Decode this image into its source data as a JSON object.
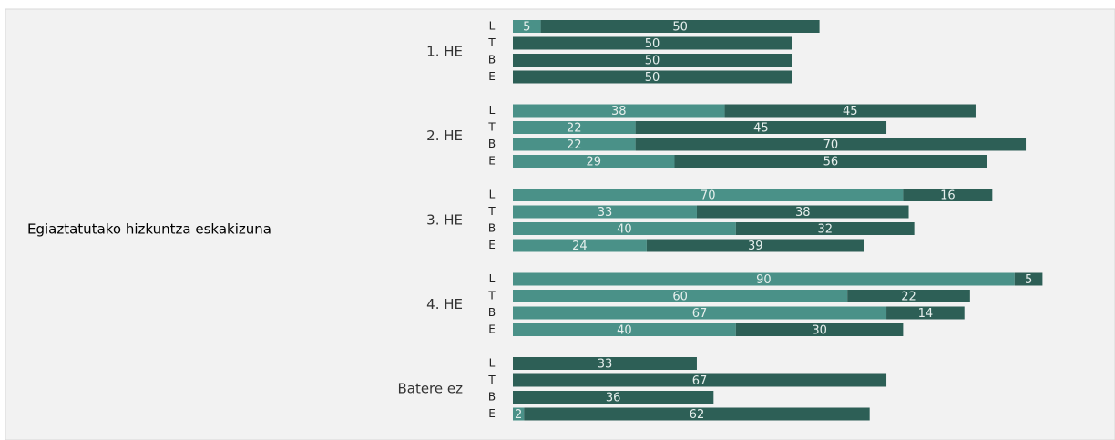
{
  "chart_data": {
    "type": "stacked-bar-horizontal",
    "y_label": "Egiaztatutako hizkuntza eskakizuna",
    "groups": [
      {
        "label": "1. HE",
        "categories": [
          "L",
          "T",
          "B",
          "E"
        ]
      },
      {
        "label": "2. HE",
        "categories": [
          "L",
          "T",
          "B",
          "E"
        ]
      },
      {
        "label": "3. HE",
        "categories": [
          "L",
          "T",
          "B",
          "E"
        ]
      },
      {
        "label": "4. HE",
        "categories": [
          "L",
          "T",
          "B",
          "E"
        ]
      },
      {
        "label": "Batere ez",
        "categories": [
          "L",
          "T",
          "B",
          "E"
        ]
      }
    ],
    "series": [
      {
        "color": "#4a9188",
        "values": [
          [
            5,
            null,
            null,
            null
          ],
          [
            38,
            22,
            22,
            29
          ],
          [
            70,
            33,
            40,
            24
          ],
          [
            90,
            60,
            67,
            40
          ],
          [
            null,
            null,
            null,
            2
          ]
        ]
      },
      {
        "color": "#2d5f56",
        "values": [
          [
            50,
            50,
            50,
            50
          ],
          [
            45,
            45,
            70,
            56
          ],
          [
            16,
            38,
            32,
            39
          ],
          [
            5,
            22,
            14,
            30
          ],
          [
            33,
            67,
            36,
            62
          ]
        ]
      }
    ]
  }
}
